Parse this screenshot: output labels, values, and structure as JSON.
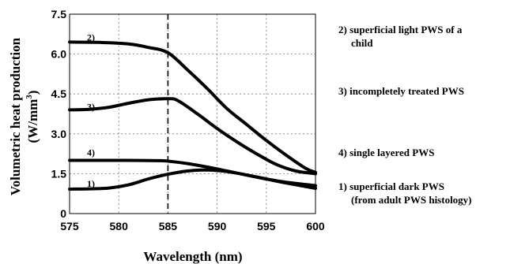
{
  "chart_data": {
    "type": "line",
    "title": "",
    "xlabel": "Wavelength (nm)",
    "ylabel_line1": "Volumetric heat production",
    "ylabel_line2_prefix": "(W/mm",
    "ylabel_line2_sup": "3",
    "ylabel_line2_suffix": ")",
    "xlim": [
      575,
      600
    ],
    "ylim": [
      0,
      7.5
    ],
    "x_ticks": [
      "575",
      "580",
      "585",
      "590",
      "595",
      "600"
    ],
    "y_ticks": [
      "0",
      "1.5",
      "3.0",
      "4.5",
      "6.0",
      "7.5"
    ],
    "grid": "dotted",
    "vertical_marker_x": 585,
    "series": [
      {
        "label": "2)",
        "legend_lines": [
          "2) superficial light PWS of a",
          "child"
        ],
        "x": [
          575,
          578,
          581,
          583,
          585,
          587,
          589,
          591,
          593,
          595,
          597,
          599,
          600
        ],
        "y": [
          6.45,
          6.44,
          6.38,
          6.25,
          6.05,
          5.4,
          4.7,
          3.95,
          3.35,
          2.75,
          2.2,
          1.7,
          1.55
        ]
      },
      {
        "label": "3)",
        "legend_lines": [
          "3) incompletely treated PWS"
        ],
        "x": [
          575,
          577,
          579,
          581,
          583,
          585,
          586,
          588,
          590,
          592,
          594,
          596,
          598,
          600
        ],
        "y": [
          3.9,
          3.92,
          4.0,
          4.15,
          4.28,
          4.32,
          4.25,
          3.75,
          3.2,
          2.7,
          2.25,
          1.85,
          1.6,
          1.5
        ]
      },
      {
        "label": "4)",
        "legend_lines": [
          "4) single layered PWS"
        ],
        "x": [
          575,
          578,
          581,
          584,
          585,
          587,
          589,
          591,
          593,
          595,
          597,
          600
        ],
        "y": [
          2.0,
          2.0,
          2.0,
          1.99,
          1.97,
          1.88,
          1.75,
          1.6,
          1.45,
          1.3,
          1.18,
          1.05
        ]
      },
      {
        "label": "1)",
        "legend_lines": [
          "1) superficial dark PWS",
          "(from adult PWS histology)"
        ],
        "x": [
          575,
          577,
          579,
          581,
          583,
          585,
          587,
          589,
          591,
          593,
          595,
          597,
          600
        ],
        "y": [
          0.92,
          0.93,
          0.96,
          1.08,
          1.3,
          1.48,
          1.6,
          1.64,
          1.58,
          1.45,
          1.3,
          1.15,
          0.95
        ]
      }
    ]
  }
}
